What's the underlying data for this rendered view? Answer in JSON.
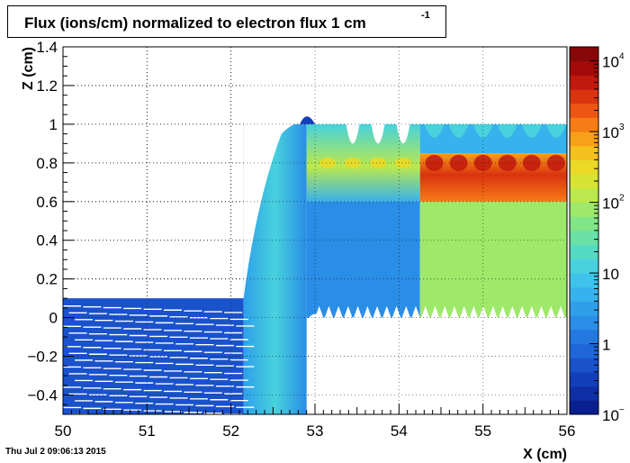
{
  "timestamp": "Thu Jul  2 09:06:13 2015",
  "chart_data": {
    "type": "heatmap",
    "title": "Flux (ions/cm) normalized to electron flux 1 cm",
    "title_exponent": "-1",
    "xlabel": "X (cm)",
    "ylabel": "Z (cm)",
    "xlim": [
      50,
      56
    ],
    "ylim": [
      -0.5,
      1.4
    ],
    "x_ticks": [
      "50",
      "51",
      "52",
      "53",
      "54",
      "55",
      "56"
    ],
    "y_ticks": [
      "−0.4",
      "−0.2",
      "0",
      "0.2",
      "0.4",
      "0.6",
      "0.8",
      "1",
      "1.2",
      "1.4"
    ],
    "y_tick_values": [
      -0.4,
      -0.2,
      0,
      0.2,
      0.4,
      0.6,
      0.8,
      1,
      1.2,
      1.4
    ],
    "grid": true,
    "colorbar": {
      "scale": "log",
      "range_exponents": [
        -1,
        4.2
      ],
      "labels": [
        {
          "base": "10",
          "exp": "4",
          "value_exp": 4
        },
        {
          "base": "10",
          "exp": "3",
          "value_exp": 3
        },
        {
          "base": "10",
          "exp": "2",
          "value_exp": 2
        },
        {
          "base": "10",
          "exp": "",
          "value_exp": 1
        },
        {
          "base": "1",
          "exp": "",
          "value_exp": 0
        },
        {
          "base": "10",
          "exp": "−",
          "value_exp": -1
        }
      ],
      "colors": [
        "#0a1f8f",
        "#0f2fa6",
        "#143fbb",
        "#1a52cc",
        "#1f66d8",
        "#2379e0",
        "#2a8de6",
        "#2f9fea",
        "#37b2ec",
        "#3ec4eb",
        "#47d2dd",
        "#55dbc4",
        "#69e1a6",
        "#82e588",
        "#9ee86a",
        "#bbe84c",
        "#d6e534",
        "#ead927",
        "#f5c11f",
        "#f9a019",
        "#f67c15",
        "#ec5513",
        "#d93310",
        "#c1190d",
        "#a30a0a",
        "#860707"
      ]
    },
    "regions": [
      {
        "name": "drift-region-left",
        "x": [
          50.0,
          52.15
        ],
        "z": [
          -0.5,
          0.1
        ],
        "level": -0.3
      },
      {
        "name": "transition-wall",
        "x": [
          52.15,
          52.9
        ],
        "z": [
          -0.5,
          1.0
        ],
        "level": 0.15
      },
      {
        "name": "mesh-middle-low",
        "x": [
          52.9,
          54.25
        ],
        "z": [
          0.0,
          0.6
        ],
        "level": 0.2
      },
      {
        "name": "mesh-middle-upper",
        "x": [
          52.9,
          54.25
        ],
        "z": [
          0.6,
          1.0
        ],
        "level": 0.6
      },
      {
        "name": "hot-right-low",
        "x": [
          54.25,
          56.0
        ],
        "z": [
          0.0,
          0.6
        ],
        "level": 2.0
      },
      {
        "name": "hot-right-band",
        "x": [
          54.25,
          56.0
        ],
        "z": [
          0.6,
          0.85
        ],
        "level": 3.0
      },
      {
        "name": "hot-right-top",
        "x": [
          54.25,
          56.0
        ],
        "z": [
          0.85,
          1.0
        ],
        "level": 0.6
      }
    ]
  }
}
